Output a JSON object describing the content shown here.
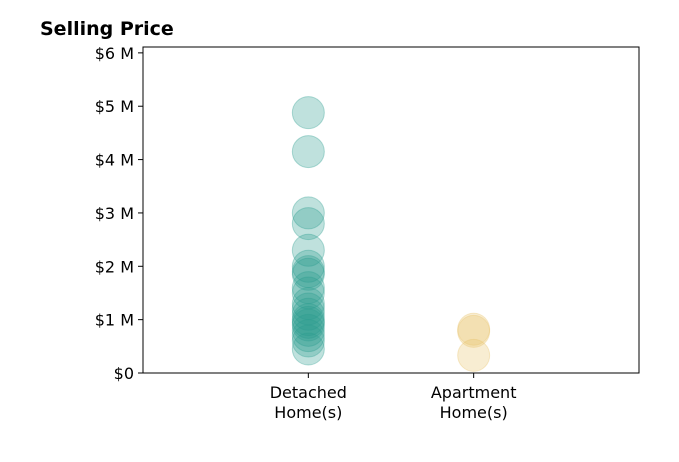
{
  "chart_data": {
    "type": "strip",
    "title": "Selling Price",
    "categories": [
      "Detached\nHome(s)",
      "Apartment\nHome(s)"
    ],
    "colors": [
      "#2a9d8f",
      "#e9c46a"
    ],
    "values": [
      [
        4880000,
        4150000,
        3000000,
        2800000,
        2300000,
        2000000,
        1900000,
        1850000,
        1600000,
        1500000,
        1300000,
        1200000,
        1100000,
        1000000,
        950000,
        900000,
        800000,
        700000,
        600000,
        450000
      ],
      [
        820000,
        780000,
        330000
      ]
    ],
    "xlim": [
      -1,
      2
    ],
    "ylim": [
      0,
      6110000
    ],
    "yticks": [
      {
        "value": 0,
        "label": "$0"
      },
      {
        "value": 1000000,
        "label": "$1 M"
      },
      {
        "value": 2000000,
        "label": "$2 M"
      },
      {
        "value": 3000000,
        "label": "$3 M"
      },
      {
        "value": 4000000,
        "label": "$4 M"
      },
      {
        "value": 5000000,
        "label": "$5 M"
      },
      {
        "value": 6000000,
        "label": "$6 M"
      }
    ]
  }
}
